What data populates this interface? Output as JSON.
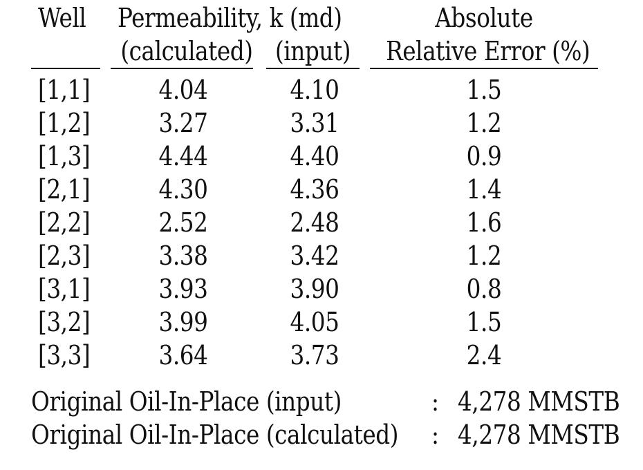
{
  "headers": {
    "well": "Well",
    "permeability": "Permeability, k (md)",
    "calculated": "(calculated)",
    "input": "(input)",
    "absolute": "Absolute",
    "relative_error": "Relative Error (%)"
  },
  "rows": [
    {
      "well": "[1,1]",
      "calculated": "4.04",
      "input": "4.10",
      "error": "1.5"
    },
    {
      "well": "[1,2]",
      "calculated": "3.27",
      "input": "3.31",
      "error": "1.2"
    },
    {
      "well": "[1,3]",
      "calculated": "4.44",
      "input": "4.40",
      "error": "0.9"
    },
    {
      "well": "[2,1]",
      "calculated": "4.30",
      "input": "4.36",
      "error": "1.4"
    },
    {
      "well": "[2,2]",
      "calculated": "2.52",
      "input": "2.48",
      "error": "1.6"
    },
    {
      "well": "[2,3]",
      "calculated": "3.38",
      "input": "3.42",
      "error": "1.2"
    },
    {
      "well": "[3,1]",
      "calculated": "3.93",
      "input": "3.90",
      "error": "0.8"
    },
    {
      "well": "[3,2]",
      "calculated": "3.99",
      "input": "4.05",
      "error": "1.5"
    },
    {
      "well": "[3,3]",
      "calculated": "3.64",
      "input": "3.73",
      "error": "2.4"
    }
  ],
  "summary": [
    {
      "label": "Original Oil-In-Place (input)",
      "colon": ":",
      "value": "4,278 MMSTB"
    },
    {
      "label": "Original Oil-In-Place (calculated)",
      "colon": ":",
      "value": "4,278 MMSTB"
    }
  ]
}
